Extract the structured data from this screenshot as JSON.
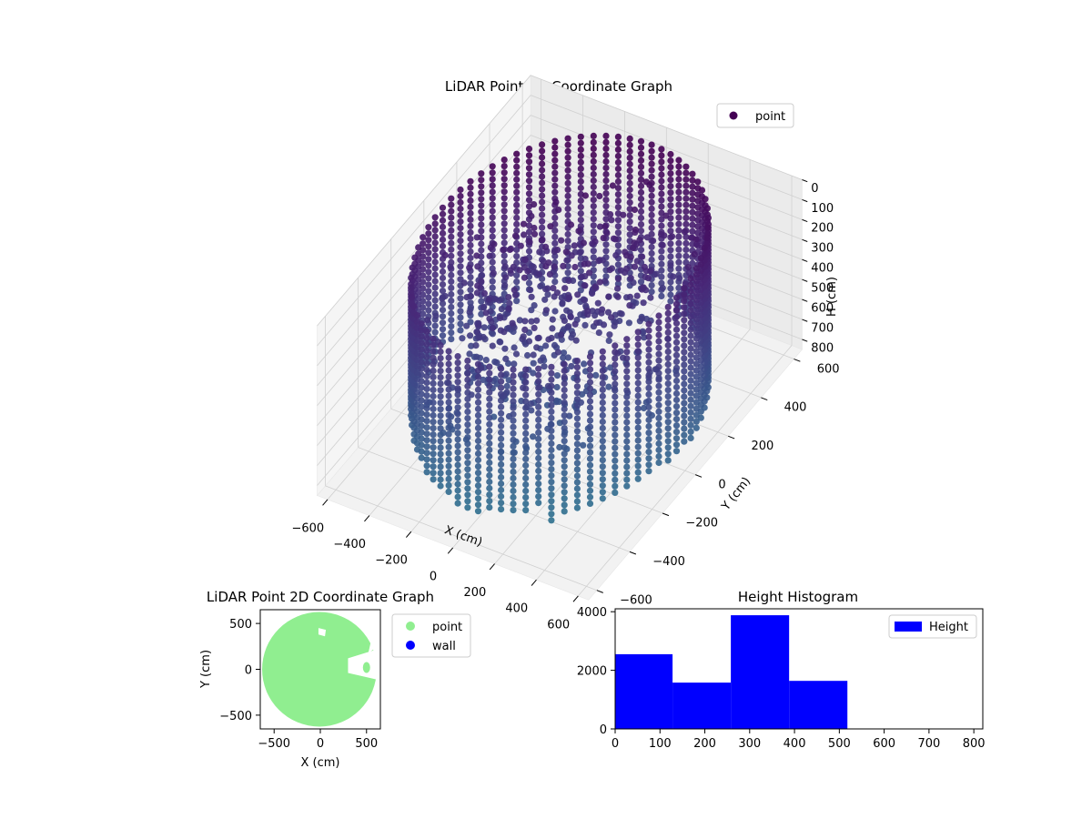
{
  "figure": {
    "background": "#ffffff"
  },
  "chart_data": [
    {
      "type": "scatter",
      "subtype": "scatter3d",
      "title": "LiDAR Point 3D Coordinate Graph",
      "xlabel": "X (cm)",
      "ylabel": "Y (cm)",
      "zlabel": "H (cm)",
      "xlim": [
        -650,
        650
      ],
      "ylim": [
        -650,
        650
      ],
      "zlim": [
        0,
        850
      ],
      "z_inverted": true,
      "xticks": [
        -600,
        -400,
        -200,
        0,
        200,
        400,
        600
      ],
      "yticks": [
        -600,
        -400,
        -200,
        0,
        200,
        400,
        600
      ],
      "zticks": [
        0,
        100,
        200,
        300,
        400,
        500,
        600,
        700,
        800
      ],
      "grid": true,
      "legend": {
        "position": "upper right",
        "entries": [
          {
            "label": "point",
            "color": "#440154"
          }
        ]
      },
      "colormap": "viridis",
      "wall_radius": 560,
      "wall_height_range": [
        0,
        800
      ],
      "wall_column_count": 72,
      "series": [
        {
          "name": "point",
          "description": "cylindrical wall of points plus interior clutter"
        }
      ]
    },
    {
      "type": "scatter",
      "title": "LiDAR Point 2D Coordinate Graph",
      "xlabel": "X (cm)",
      "ylabel": "Y (cm)",
      "xlim": [
        -650,
        650
      ],
      "ylim": [
        -650,
        650
      ],
      "xticks": [
        -500,
        0,
        500
      ],
      "yticks": [
        -500,
        0,
        500
      ],
      "legend": {
        "position": "outside right",
        "entries": [
          {
            "label": "point",
            "color": "#90ee90"
          },
          {
            "label": "wall",
            "color": "#0000ff"
          }
        ]
      },
      "series": [
        {
          "name": "point",
          "color": "#90ee90",
          "shape": "filled disk radius ~620 with small gaps"
        },
        {
          "name": "wall",
          "color": "#0000ff",
          "points": []
        }
      ]
    },
    {
      "type": "bar",
      "subtype": "histogram",
      "title": "Height Histogram",
      "xlabel": "",
      "ylabel": "",
      "xlim": [
        0,
        820
      ],
      "ylim": [
        0,
        4100
      ],
      "xticks": [
        0,
        100,
        200,
        300,
        400,
        500,
        600,
        700,
        800
      ],
      "yticks": [
        0,
        2000,
        4000
      ],
      "legend": {
        "position": "upper right",
        "entries": [
          {
            "label": "Height",
            "color": "#0000ff"
          }
        ]
      },
      "bins": [
        {
          "start": 0,
          "end": 128,
          "count": 2550
        },
        {
          "start": 128,
          "end": 258,
          "count": 1580
        },
        {
          "start": 258,
          "end": 388,
          "count": 3880
        },
        {
          "start": 388,
          "end": 518,
          "count": 1640
        },
        {
          "start": 518,
          "end": 648,
          "count": 0
        },
        {
          "start": 648,
          "end": 778,
          "count": 0
        }
      ],
      "color": "#0000ff"
    }
  ]
}
